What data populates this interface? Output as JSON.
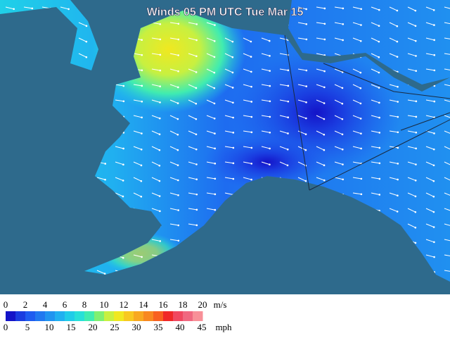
{
  "title": "Winds 05 PM UTC Tue Mar 15",
  "legend": {
    "ms_ticks": [
      0,
      2,
      4,
      6,
      8,
      10,
      12,
      14,
      16,
      18,
      20
    ],
    "ms_unit": "m/s",
    "mph_ticks": [
      0,
      5,
      10,
      15,
      20,
      25,
      30,
      35,
      40,
      45
    ],
    "mph_unit": "mph",
    "colors": [
      "#1414c8",
      "#1a3ce0",
      "#1e5cf0",
      "#2078f0",
      "#2094f0",
      "#20b0f0",
      "#20cce8",
      "#28e0d8",
      "#40ecb0",
      "#80f070",
      "#c8f040",
      "#f0e820",
      "#f8c820",
      "#f8a820",
      "#f88820",
      "#f86020",
      "#f02828",
      "#f04860",
      "#f06880",
      "#f89098"
    ]
  }
}
